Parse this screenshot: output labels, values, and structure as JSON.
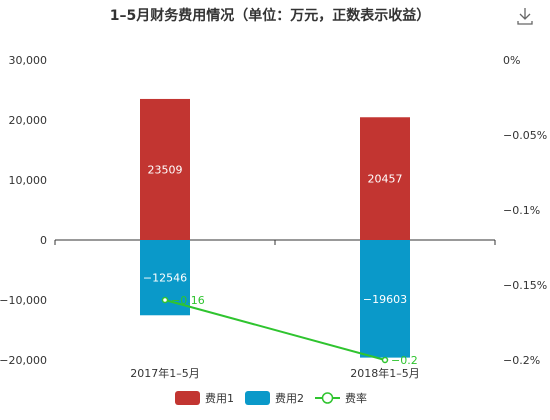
{
  "toolbar": {
    "download_icon": "download-icon"
  },
  "chart_data": {
    "type": "bar",
    "title": "1–5月财务费用情况（单位：万元，正数表示收益）",
    "categories": [
      "2017年1–5月",
      "2018年1–5月"
    ],
    "series": [
      {
        "name": "费用1",
        "type": "bar",
        "values": [
          23509,
          20457
        ],
        "labels": [
          "23509",
          "20457"
        ],
        "color": "#c23531"
      },
      {
        "name": "费用2",
        "type": "bar",
        "values": [
          -12546,
          -19603
        ],
        "labels": [
          "−12546",
          "−19603"
        ],
        "color": "#0a99c9"
      },
      {
        "name": "费率",
        "type": "line",
        "axis": "right",
        "values": [
          -0.16,
          -0.2
        ],
        "labels": [
          "−0.16",
          "−0.2"
        ],
        "color": "#2fc42f"
      }
    ],
    "stacked": true,
    "y_left": {
      "range": [
        -20000,
        30000
      ],
      "ticks": [
        30000,
        20000,
        10000,
        0,
        -10000,
        -20000
      ],
      "tick_labels": [
        "30,000",
        "20,000",
        "10,000",
        "0",
        "−10,000",
        "−20,000"
      ]
    },
    "y_right": {
      "range": [
        -0.2,
        0
      ],
      "ticks": [
        0,
        -0.05,
        -0.1,
        -0.15,
        -0.2
      ],
      "tick_labels": [
        "0%",
        "−0.05%",
        "−0.1%",
        "−0.15%",
        "−0.2%"
      ]
    },
    "grid": false,
    "legend_position": "bottom-center"
  }
}
